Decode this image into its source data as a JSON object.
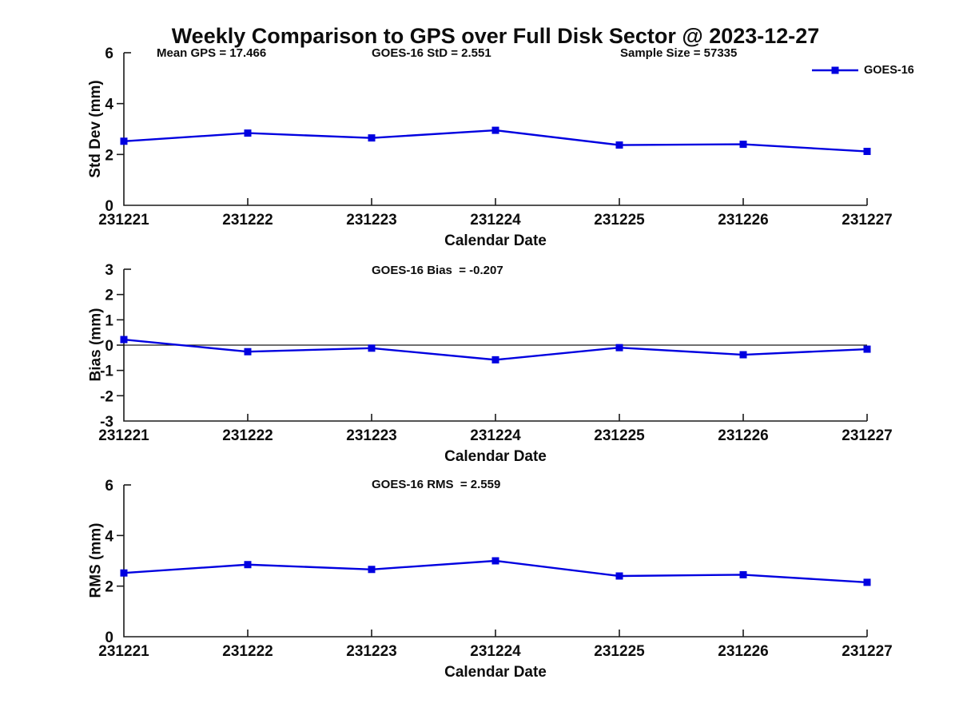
{
  "title": "Weekly Comparison to GPS over Full Disk Sector @ 2023-12-27",
  "colors": {
    "line": "#0000e0",
    "axis": "#1a1a1a",
    "text": "#0d0d0d"
  },
  "legend": {
    "label": "GOES-16",
    "position": "top-right"
  },
  "chart_data": [
    {
      "type": "line",
      "name": "std-dev",
      "ylabel": "Std Dev (mm)",
      "xlabel": "Calendar Date",
      "categories": [
        "231221",
        "231222",
        "231223",
        "231224",
        "231225",
        "231226",
        "231227"
      ],
      "series": [
        {
          "name": "GOES-16",
          "values": [
            2.52,
            2.84,
            2.65,
            2.95,
            2.37,
            2.4,
            2.12
          ]
        }
      ],
      "ylim": [
        0,
        6
      ],
      "yticks": [
        6,
        4,
        2,
        0
      ],
      "grid": false,
      "annotations": [
        "Mean GPS = 17.466",
        "GOES-16 StD = 2.551",
        "Sample Size = 57335"
      ],
      "stats": {
        "mean_gps": 17.466,
        "goes16_std": 2.551,
        "sample_size": 57335
      }
    },
    {
      "type": "line",
      "name": "bias",
      "ylabel": "Bias (mm)",
      "xlabel": "Calendar Date",
      "categories": [
        "231221",
        "231222",
        "231223",
        "231224",
        "231225",
        "231226",
        "231227"
      ],
      "series": [
        {
          "name": "GOES-16",
          "values": [
            0.22,
            -0.26,
            -0.12,
            -0.58,
            -0.1,
            -0.38,
            -0.16
          ]
        }
      ],
      "ylim": [
        -3,
        3
      ],
      "yticks": [
        3,
        2,
        1,
        0,
        -1,
        -2,
        -3
      ],
      "zero_line": true,
      "grid": false,
      "annotations": [
        "GOES-16 Bias  = -0.207"
      ],
      "stats": {
        "goes16_bias": -0.207
      }
    },
    {
      "type": "line",
      "name": "rms",
      "ylabel": "RMS (mm)",
      "xlabel": "Calendar Date",
      "categories": [
        "231221",
        "231222",
        "231223",
        "231224",
        "231225",
        "231226",
        "231227"
      ],
      "series": [
        {
          "name": "GOES-16",
          "values": [
            2.52,
            2.85,
            2.66,
            3.0,
            2.4,
            2.45,
            2.15
          ]
        }
      ],
      "ylim": [
        0,
        6
      ],
      "yticks": [
        6,
        4,
        2,
        0
      ],
      "grid": false,
      "annotations": [
        "GOES-16 RMS  = 2.559"
      ],
      "stats": {
        "goes16_rms": 2.559
      }
    }
  ]
}
